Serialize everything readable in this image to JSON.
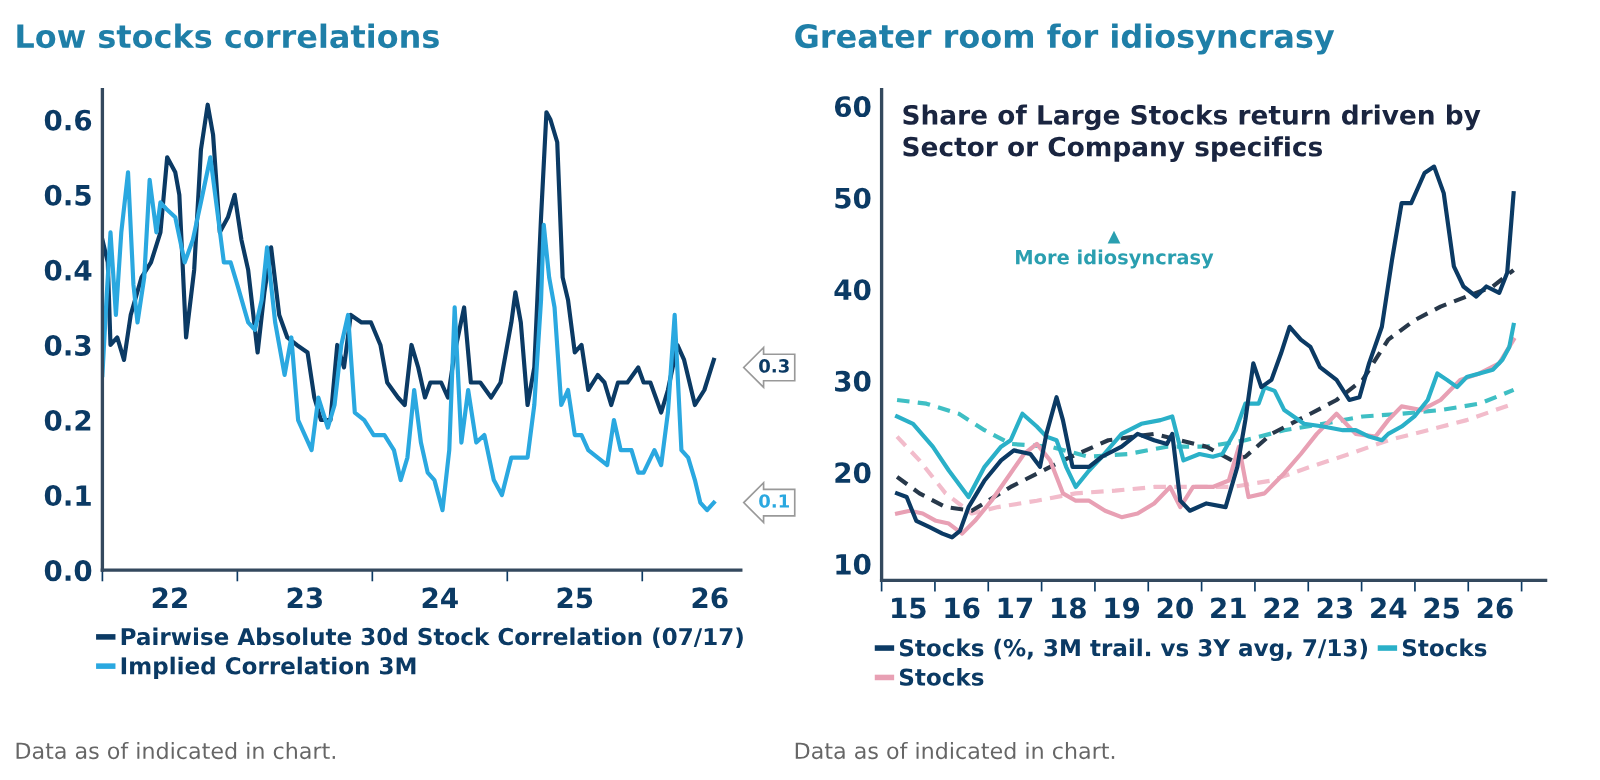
{
  "chart_data": [
    {
      "type": "line",
      "title": "Low stocks correlations",
      "legend": "bottom",
      "grid": false,
      "line_style": "solid",
      "xlim": [
        21.5,
        26.23
      ],
      "ylim": [
        0,
        0.64
      ],
      "xticks": [
        {
          "value": 21.5,
          "label": null
        },
        22,
        {
          "value": 22.5,
          "label": null
        },
        23,
        {
          "value": 23.5,
          "label": null
        },
        24,
        {
          "value": 24.5,
          "label": null
        },
        25,
        {
          "value": 25.5,
          "label": null
        },
        26
      ],
      "yticks": [
        {
          "value": 0,
          "label": "0.0"
        },
        0.1,
        0.2,
        0.3,
        0.4,
        0.5,
        0.6
      ],
      "series": [
        {
          "name": "Pairwise Absolute 30d Stock Correlation (07/17)",
          "color": "#0b3a64",
          "x": [
            21.5,
            21.54,
            21.56,
            21.61,
            21.66,
            21.71,
            21.79,
            21.86,
            21.93,
            21.98,
            22.04,
            22.07,
            22.12,
            22.18,
            22.23,
            22.28,
            22.32,
            22.37,
            22.43,
            22.48,
            22.53,
            22.58,
            22.65,
            22.7,
            22.75,
            22.81,
            22.87,
            22.94,
            23.02,
            23.07,
            23.12,
            23.19,
            23.24,
            23.29,
            23.34,
            23.42,
            23.49,
            23.56,
            23.61,
            23.69,
            23.74,
            23.79,
            23.84,
            23.89,
            23.93,
            24.01,
            24.06,
            24.11,
            24.18,
            24.23,
            24.3,
            24.38,
            24.45,
            24.53,
            24.56,
            24.6,
            24.65,
            24.7,
            24.75,
            24.79,
            24.82,
            24.87,
            24.91,
            24.95,
            25.0,
            25.05,
            25.1,
            25.17,
            25.22,
            25.27,
            25.32,
            25.39,
            25.47,
            25.51,
            25.56,
            25.64,
            25.69,
            25.76,
            25.81,
            25.89,
            25.96,
            26.03
          ],
          "values": [
            0.44,
            0.41,
            0.3,
            0.31,
            0.28,
            0.34,
            0.39,
            0.41,
            0.45,
            0.55,
            0.53,
            0.5,
            0.31,
            0.4,
            0.56,
            0.62,
            0.58,
            0.45,
            0.47,
            0.5,
            0.44,
            0.4,
            0.29,
            0.37,
            0.43,
            0.34,
            0.31,
            0.3,
            0.29,
            0.23,
            0.2,
            0.2,
            0.3,
            0.27,
            0.34,
            0.33,
            0.33,
            0.3,
            0.25,
            0.23,
            0.22,
            0.3,
            0.27,
            0.23,
            0.25,
            0.25,
            0.23,
            0.29,
            0.35,
            0.25,
            0.25,
            0.23,
            0.25,
            0.33,
            0.37,
            0.33,
            0.22,
            0.27,
            0.47,
            0.61,
            0.6,
            0.57,
            0.39,
            0.36,
            0.29,
            0.3,
            0.24,
            0.26,
            0.25,
            0.22,
            0.25,
            0.25,
            0.27,
            0.25,
            0.25,
            0.21,
            0.24,
            0.3,
            0.28,
            0.22,
            0.24,
            0.28
          ]
        },
        {
          "name": "Implied Correlation 3M",
          "color": "#2aa8e0",
          "x": [
            21.5,
            21.53,
            21.56,
            21.6,
            21.64,
            21.69,
            21.73,
            21.76,
            21.81,
            21.85,
            21.9,
            21.93,
            21.98,
            22.04,
            22.11,
            22.17,
            22.23,
            22.3,
            22.35,
            22.4,
            22.45,
            22.5,
            22.58,
            22.63,
            22.68,
            22.72,
            22.78,
            22.85,
            22.9,
            22.95,
            23.0,
            23.05,
            23.1,
            23.17,
            23.22,
            23.27,
            23.32,
            23.37,
            23.44,
            23.51,
            23.59,
            23.66,
            23.71,
            23.76,
            23.81,
            23.86,
            23.91,
            23.96,
            24.02,
            24.07,
            24.11,
            24.16,
            24.21,
            24.27,
            24.33,
            24.4,
            24.46,
            24.53,
            24.6,
            24.65,
            24.7,
            24.75,
            24.77,
            24.81,
            24.85,
            24.9,
            24.95,
            25.0,
            25.05,
            25.1,
            25.17,
            25.24,
            25.29,
            25.34,
            25.42,
            25.47,
            25.51,
            25.59,
            25.64,
            25.69,
            25.74,
            25.79,
            25.84,
            25.89,
            25.93,
            25.98,
            26.03
          ],
          "values": [
            0.26,
            0.36,
            0.45,
            0.34,
            0.45,
            0.53,
            0.38,
            0.33,
            0.39,
            0.52,
            0.45,
            0.49,
            0.48,
            0.47,
            0.41,
            0.44,
            0.49,
            0.55,
            0.48,
            0.41,
            0.41,
            0.38,
            0.33,
            0.32,
            0.36,
            0.43,
            0.33,
            0.26,
            0.31,
            0.2,
            0.18,
            0.16,
            0.23,
            0.19,
            0.22,
            0.3,
            0.34,
            0.21,
            0.2,
            0.18,
            0.18,
            0.16,
            0.12,
            0.15,
            0.24,
            0.17,
            0.13,
            0.12,
            0.08,
            0.16,
            0.35,
            0.17,
            0.24,
            0.17,
            0.18,
            0.12,
            0.1,
            0.15,
            0.15,
            0.15,
            0.22,
            0.36,
            0.46,
            0.39,
            0.35,
            0.22,
            0.24,
            0.18,
            0.18,
            0.16,
            0.15,
            0.14,
            0.2,
            0.16,
            0.16,
            0.13,
            0.13,
            0.16,
            0.14,
            0.21,
            0.34,
            0.16,
            0.15,
            0.12,
            0.09,
            0.08,
            0.09
          ]
        }
      ],
      "annotations": [
        {
          "text": "0.3",
          "x": 26.03,
          "y": 0.27
        },
        {
          "text": "0.1",
          "x": 26.03,
          "y": 0.09
        },
        "Data as of indicated in chart."
      ]
    },
    {
      "type": "line",
      "title": "Greater room for idiosyncrasy",
      "subtitle": "Share of Large Stocks return driven by\nSector or Company specifics",
      "legend": "bottom",
      "grid": false,
      "line_style": "solid",
      "xlim": [
        14.5,
        26.95
      ],
      "ylim": [
        8.2,
        61.8
      ],
      "xticks": [
        {
          "value": 14.5,
          "label": null
        },
        15,
        {
          "value": 15.5,
          "label": null
        },
        16,
        {
          "value": 16.5,
          "label": null
        },
        17,
        {
          "value": 17.5,
          "label": null
        },
        18,
        {
          "value": 18.5,
          "label": null
        },
        19,
        {
          "value": 19.5,
          "label": null
        },
        20,
        {
          "value": 20.5,
          "label": null
        },
        21,
        {
          "value": 21.5,
          "label": null
        },
        22,
        {
          "value": 22.5,
          "label": null
        },
        23,
        {
          "value": 23.5,
          "label": null
        },
        24,
        {
          "value": 24.5,
          "label": null
        },
        25,
        {
          "value": 25.5,
          "label": null
        },
        26,
        {
          "value": 26.5,
          "label": null
        }
      ],
      "yticks": [
        10,
        20,
        30,
        40,
        50,
        60
      ],
      "series": [
        {
          "color": "#f2bccb",
          "line_style": "dashed",
          "x": [
            14.79,
            15.21,
            15.7,
            16.19,
            16.68,
            17.41,
            18.14,
            18.88,
            19.61,
            20.34,
            21.07,
            21.81,
            22.54,
            23.27,
            24.0,
            24.74,
            25.47,
            26.35
          ],
          "values": [
            23.9,
            21.3,
            17.7,
            15.5,
            16.2,
            16.9,
            17.7,
            18.0,
            18.4,
            18.4,
            18.4,
            19.1,
            20.6,
            22.0,
            23.5,
            24.6,
            25.7,
            27.5
          ]
        },
        {
          "color": "#3fbfc4",
          "line_style": "dashed",
          "x": [
            14.79,
            15.34,
            15.95,
            16.43,
            16.92,
            17.66,
            18.39,
            19.12,
            19.85,
            20.59,
            21.32,
            22.05,
            22.78,
            23.52,
            24.25,
            24.98,
            25.71,
            26.35
          ],
          "values": [
            27.9,
            27.5,
            26.4,
            24.6,
            23.1,
            22.8,
            21.7,
            22.0,
            22.8,
            22.8,
            23.5,
            24.6,
            25.3,
            26.1,
            26.4,
            26.8,
            27.5,
            29.0
          ]
        },
        {
          "color": "#27384a",
          "line_style": "dashed",
          "x": [
            14.79,
            15.21,
            15.7,
            16.19,
            16.92,
            17.9,
            18.75,
            19.61,
            20.1,
            20.59,
            21.07,
            21.32,
            21.81,
            22.54,
            23.03,
            23.52,
            24.0,
            24.49,
            24.98,
            25.47,
            25.96,
            26.35
          ],
          "values": [
            19.5,
            17.7,
            16.2,
            15.8,
            18.4,
            21.3,
            23.5,
            24.2,
            23.5,
            22.8,
            21.3,
            21.7,
            24.2,
            26.4,
            27.9,
            30.1,
            34.5,
            36.6,
            38.1,
            39.2,
            40.3,
            42.1
          ]
        },
        {
          "name": "Stocks",
          "color": "#e8a0b4",
          "x": [
            14.79,
            15.03,
            15.27,
            15.52,
            15.76,
            16.01,
            16.25,
            16.56,
            16.92,
            17.17,
            17.41,
            17.66,
            17.9,
            18.14,
            18.39,
            18.69,
            19.0,
            19.3,
            19.61,
            19.91,
            20.1,
            20.34,
            20.71,
            21.01,
            21.2,
            21.38,
            21.68,
            22.05,
            22.36,
            22.66,
            23.03,
            23.39,
            23.76,
            24.0,
            24.25,
            24.62,
            24.98,
            25.35,
            25.71,
            26.08,
            26.35
          ],
          "values": [
            15.5,
            15.8,
            15.5,
            14.7,
            14.4,
            13.3,
            14.7,
            16.9,
            19.9,
            22.0,
            23.1,
            21.3,
            17.7,
            16.9,
            16.9,
            15.8,
            15.1,
            15.5,
            16.6,
            18.4,
            16.2,
            18.4,
            18.4,
            19.1,
            22.8,
            17.3,
            17.7,
            19.9,
            22.0,
            24.2,
            26.4,
            24.2,
            23.9,
            25.7,
            27.2,
            26.8,
            27.9,
            30.1,
            30.8,
            31.9,
            34.5
          ]
        },
        {
          "name": "Stocks",
          "color": "#2ab0c8",
          "x": [
            14.79,
            15.09,
            15.46,
            15.76,
            16.13,
            16.43,
            16.74,
            16.92,
            17.14,
            17.41,
            17.59,
            17.78,
            17.96,
            18.14,
            18.39,
            18.63,
            19.0,
            19.37,
            19.73,
            19.95,
            20.16,
            20.46,
            20.71,
            20.89,
            21.14,
            21.32,
            21.57,
            21.68,
            21.87,
            22.05,
            22.42,
            22.78,
            23.15,
            23.39,
            23.64,
            23.88,
            24.0,
            24.25,
            24.49,
            24.74,
            24.92,
            25.1,
            25.29,
            25.47,
            25.71,
            25.96,
            26.14,
            26.27,
            26.35
          ],
          "values": [
            26.1,
            25.3,
            22.8,
            20.2,
            17.3,
            20.6,
            22.8,
            23.5,
            26.4,
            25.0,
            23.9,
            23.5,
            20.6,
            18.4,
            20.2,
            21.7,
            24.2,
            25.3,
            25.7,
            26.1,
            21.3,
            22.0,
            21.7,
            22.0,
            24.6,
            27.5,
            27.5,
            29.3,
            28.9,
            26.8,
            25.3,
            25.0,
            24.6,
            24.6,
            23.9,
            23.5,
            24.2,
            25.0,
            26.1,
            27.9,
            30.8,
            30.1,
            29.3,
            30.4,
            30.8,
            31.2,
            32.3,
            33.7,
            36.1
          ]
        },
        {
          "name": "Stocks (%, 3M trail. vs 3Y avg, 7/13)",
          "color": "#0b3a64",
          "x": [
            14.79,
            14.97,
            15.15,
            15.4,
            15.64,
            15.82,
            15.97,
            16.13,
            16.43,
            16.74,
            16.98,
            17.29,
            17.47,
            17.59,
            17.78,
            17.9,
            18.08,
            18.39,
            18.63,
            19.0,
            19.3,
            19.61,
            19.85,
            19.95,
            20.1,
            20.28,
            20.59,
            20.95,
            21.17,
            21.32,
            21.47,
            21.62,
            21.81,
            21.99,
            22.15,
            22.36,
            22.54,
            22.72,
            23.03,
            23.27,
            23.46,
            23.64,
            23.88,
            24.07,
            24.25,
            24.43,
            24.68,
            24.86,
            25.04,
            25.23,
            25.41,
            25.65,
            25.84,
            26.08,
            26.23,
            26.35
          ],
          "values": [
            17.7,
            17.3,
            14.7,
            14.0,
            13.3,
            12.9,
            13.6,
            16.2,
            19.1,
            21.3,
            22.4,
            22.0,
            20.6,
            24.2,
            28.2,
            25.7,
            20.6,
            20.6,
            21.7,
            22.8,
            24.2,
            23.5,
            23.1,
            24.2,
            16.9,
            15.8,
            16.6,
            16.2,
            20.6,
            25.7,
            31.9,
            29.3,
            30.1,
            33.0,
            35.9,
            34.5,
            33.7,
            31.5,
            30.1,
            27.9,
            28.2,
            31.9,
            35.9,
            43.2,
            49.4,
            49.4,
            52.7,
            53.4,
            50.5,
            42.5,
            40.3,
            39.2,
            40.3,
            39.6,
            41.8,
            50.5
          ]
        }
      ],
      "annotations": [
        "▲",
        "More idiosyncrasy",
        "Data as of indicated in chart."
      ]
    }
  ]
}
